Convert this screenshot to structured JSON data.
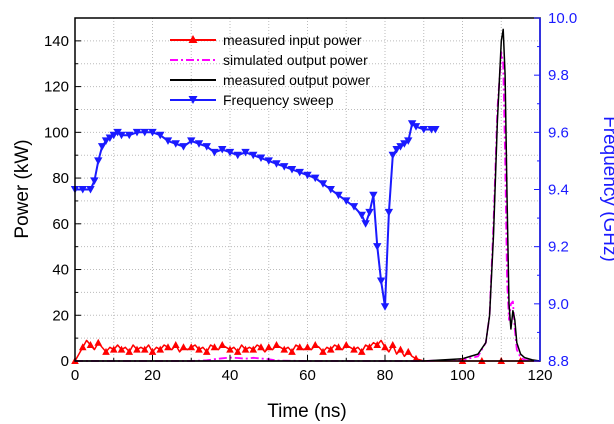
{
  "chart_data": {
    "type": "line",
    "xlabel": "Time (ns)",
    "ylabel_left": "Power (kW)",
    "ylabel_right": "Frequency (GHz)",
    "xlim": [
      0,
      120
    ],
    "ylim_left": [
      0,
      150
    ],
    "ylim_right": [
      8.8,
      10.0
    ],
    "x_ticks": [
      "0",
      "20",
      "40",
      "60",
      "80",
      "100",
      "120"
    ],
    "y_left_ticks": [
      "0",
      "20",
      "40",
      "60",
      "80",
      "100",
      "120",
      "140"
    ],
    "y_right_ticks": [
      "8.8",
      "9.0",
      "9.2",
      "9.4",
      "9.6",
      "9.8",
      "10.0"
    ],
    "grid": true,
    "legend_position": "top-center",
    "colors": {
      "input": "#ff0000",
      "simulated": "#ff00ff",
      "measured_output": "#000000",
      "frequency": "#1a1aff",
      "right_axis": "#1a1aff"
    },
    "series": [
      {
        "name": "measured input power",
        "axis": "left",
        "marker": "triangle-up",
        "x": [
          0,
          1,
          2,
          3,
          4,
          5,
          6,
          7,
          8,
          9,
          10,
          11,
          12,
          13,
          14,
          15,
          16,
          17,
          18,
          19,
          20,
          21,
          22,
          23,
          24,
          25,
          26,
          27,
          28,
          29,
          30,
          31,
          32,
          33,
          34,
          35,
          36,
          37,
          38,
          39,
          40,
          41,
          42,
          43,
          44,
          45,
          46,
          47,
          48,
          49,
          50,
          51,
          52,
          53,
          54,
          55,
          56,
          57,
          58,
          59,
          60,
          61,
          62,
          63,
          64,
          65,
          66,
          67,
          68,
          69,
          70,
          71,
          72,
          73,
          74,
          75,
          76,
          77,
          78,
          79,
          80,
          81,
          82,
          83,
          84,
          85,
          86,
          87,
          88,
          90,
          95,
          100,
          105,
          110,
          115,
          120
        ],
        "y": [
          0,
          3,
          6,
          9,
          7,
          5,
          8,
          6,
          4,
          6,
          5,
          7,
          5,
          6,
          4,
          7,
          5,
          6,
          5,
          7,
          4,
          6,
          5,
          7,
          6,
          5,
          7,
          4,
          6,
          5,
          6,
          7,
          5,
          6,
          4,
          7,
          6,
          5,
          7,
          6,
          5,
          6,
          4,
          7,
          5,
          6,
          5,
          7,
          6,
          4,
          6,
          5,
          7,
          6,
          5,
          6,
          4,
          7,
          6,
          5,
          6,
          5,
          7,
          6,
          4,
          6,
          5,
          7,
          6,
          5,
          7,
          6,
          5,
          6,
          4,
          7,
          6,
          8,
          7,
          9,
          6,
          4,
          7,
          3,
          5,
          2,
          4,
          2,
          1,
          0,
          0,
          0,
          0,
          0,
          0,
          0
        ]
      },
      {
        "name": "simulated output power",
        "axis": "left",
        "dash": "dash-dot",
        "x": [
          0,
          10,
          20,
          30,
          34,
          36,
          38,
          40,
          42,
          44,
          46,
          48,
          50,
          52,
          60,
          70,
          80,
          90,
          100,
          104,
          106,
          107,
          108,
          109,
          110,
          110.5,
          111,
          111.5,
          112,
          112.5,
          113,
          113.5,
          114,
          115,
          116,
          118,
          120
        ],
        "y": [
          0,
          0,
          0,
          0,
          0.3,
          0.8,
          1.2,
          1.5,
          1.3,
          1.0,
          1.4,
          1.1,
          0.8,
          0.2,
          0,
          0,
          0,
          0,
          0.5,
          2,
          8,
          20,
          60,
          110,
          135,
          130,
          90,
          35,
          18,
          25,
          26,
          14,
          5,
          1.5,
          0.5,
          0,
          0
        ]
      },
      {
        "name": "measured output power",
        "axis": "left",
        "x": [
          0,
          20,
          40,
          60,
          80,
          90,
          95,
          100,
          102,
          104,
          106,
          107,
          108,
          109,
          110,
          110.5,
          111,
          111.5,
          112,
          112.5,
          113,
          113.5,
          114,
          115,
          116,
          118,
          120
        ],
        "y": [
          0,
          0,
          0,
          0,
          0,
          0,
          0.5,
          1,
          2,
          3,
          8,
          20,
          55,
          105,
          140,
          145,
          125,
          70,
          25,
          14,
          22,
          18,
          8,
          3,
          1.5,
          0.5,
          0
        ]
      },
      {
        "name": "Frequency sweep",
        "axis": "right",
        "marker": "triangle-down",
        "x": [
          0,
          2,
          4,
          5,
          6,
          7,
          8,
          9,
          10,
          11,
          12,
          14,
          16,
          18,
          20,
          22,
          24,
          26,
          28,
          30,
          32,
          34,
          36,
          38,
          40,
          42,
          44,
          46,
          48,
          50,
          52,
          54,
          56,
          58,
          60,
          62,
          64,
          66,
          68,
          70,
          72,
          74,
          75,
          76,
          77,
          78,
          79,
          80,
          81,
          82,
          83,
          84,
          85,
          86,
          87,
          88,
          90,
          92,
          93
        ],
        "y": [
          9.4,
          9.4,
          9.4,
          9.43,
          9.5,
          9.55,
          9.57,
          9.58,
          9.59,
          9.6,
          9.59,
          9.59,
          9.6,
          9.6,
          9.6,
          9.59,
          9.57,
          9.56,
          9.55,
          9.57,
          9.56,
          9.55,
          9.53,
          9.54,
          9.53,
          9.52,
          9.53,
          9.52,
          9.51,
          9.5,
          9.49,
          9.48,
          9.47,
          9.46,
          9.45,
          9.44,
          9.42,
          9.4,
          9.38,
          9.36,
          9.34,
          9.31,
          9.28,
          9.32,
          9.38,
          9.2,
          9.08,
          8.99,
          9.32,
          9.52,
          9.54,
          9.55,
          9.56,
          9.57,
          9.63,
          9.62,
          9.61,
          9.61,
          9.61
        ]
      }
    ]
  }
}
